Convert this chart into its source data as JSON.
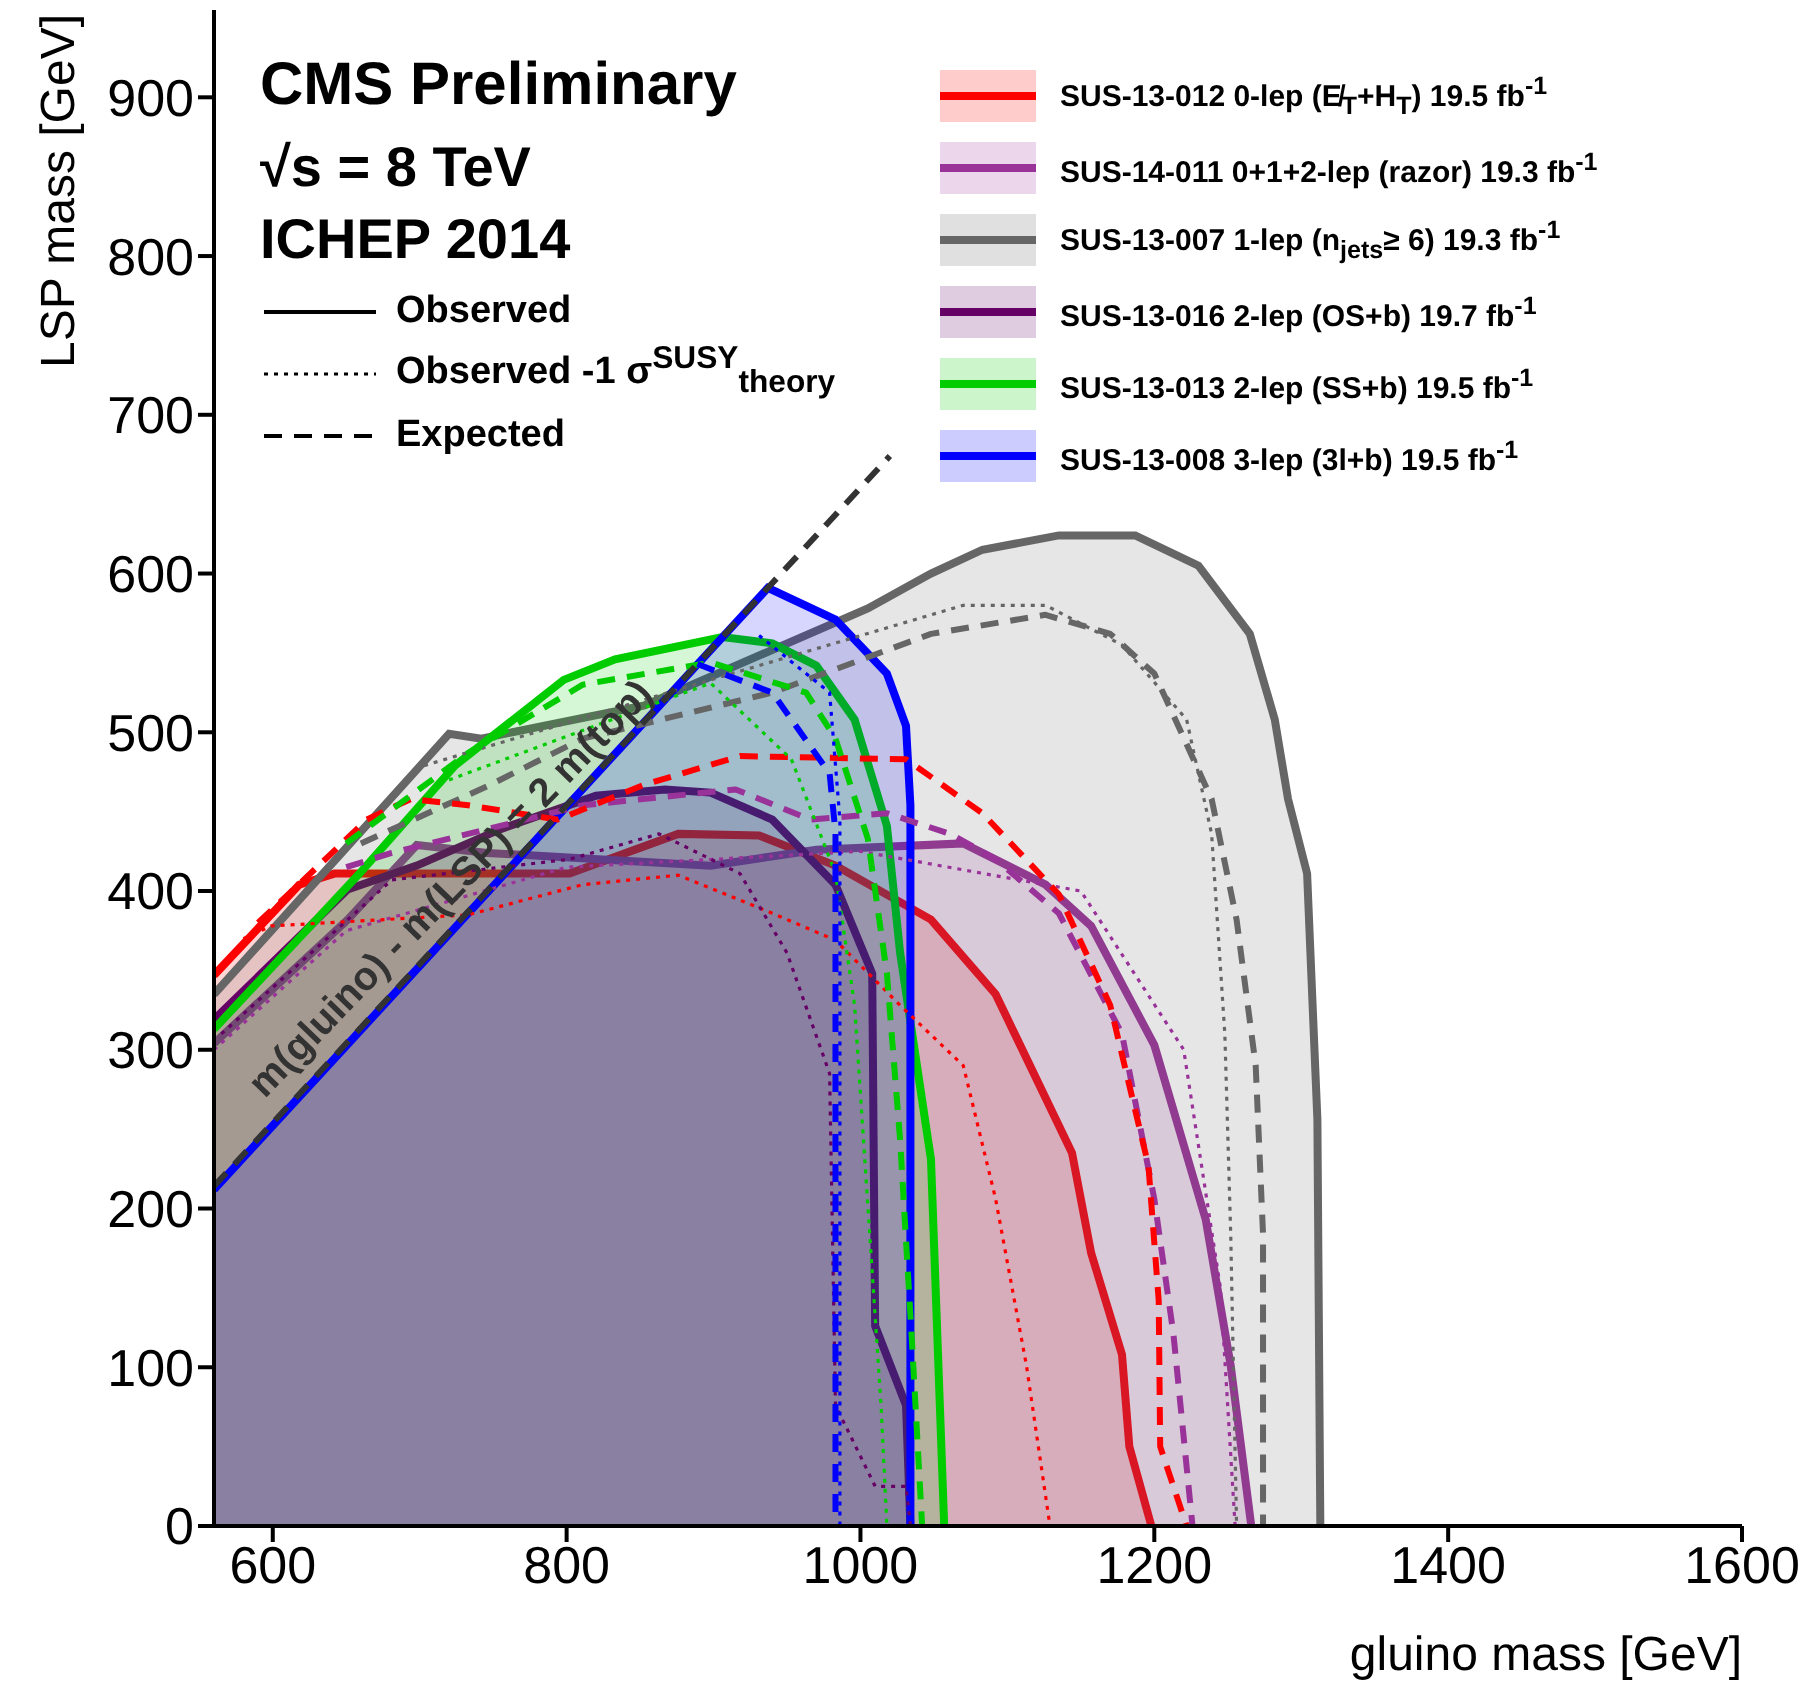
{
  "chart_data": {
    "type": "line",
    "title": "CMS Preliminary",
    "subtitle": "√s = 8 TeV",
    "xlabel": "gluino mass [GeV]",
    "ylabel": "LSP mass [GeV]",
    "xlim": [
      560,
      1600
    ],
    "xticks": [
      600,
      800,
      1000,
      1200,
      1400,
      1600
    ],
    "ylim": [
      0,
      955
    ],
    "yticks": [
      0,
      100,
      200,
      300,
      400,
      500,
      600,
      700,
      800,
      900
    ],
    "legend": "top right",
    "annotations": [
      "ICHEP 2014",
      "Observed",
      "Observed -1 σ$^{SUSY}$$_{theory}$",
      "Expected",
      {
        "text": "m(gluino) - m(LSP) = 2 m(top)",
        "x": 735,
        "y": 389
      }
    ],
    "series": [
      {
        "name": "SUS-13-012 0-lep (E̸$_{T}$+H$_{T}$) 19.5 fb$^{-1}$",
        "type": "area",
        "line_style": "solid",
        "color": "#ff0000",
        "x": [
          560,
          618,
          642,
          700,
          802,
          876,
          931,
          983,
          1048,
          1092,
          1144,
          1157,
          1178,
          1183,
          1198
        ],
        "values": [
          347,
          404,
          411,
          411,
          411,
          436,
          435,
          416,
          382,
          335,
          235,
          172,
          108,
          50,
          0
        ]
      },
      {
        "name": "SUS-14-011 0+1+2-lep (razor) 19.3 fb$^{-1}$",
        "type": "area",
        "line_style": "solid",
        "color": "#993399",
        "x": [
          560,
          651,
          698,
          746,
          898,
          970,
          1070,
          1126,
          1157,
          1200,
          1235,
          1252,
          1266
        ],
        "values": [
          304,
          382,
          429,
          424,
          416,
          426,
          430,
          404,
          378,
          303,
          193,
          101,
          0
        ]
      },
      {
        "name": "SUS-13-007 1-lep (n$_{jets}$≥ 6) 19.3 fb$^{-1}$",
        "type": "area",
        "line_style": "solid",
        "color": "#666666",
        "x": [
          560,
          720,
          742,
          853,
          1005,
          1048,
          1083,
          1135,
          1187,
          1230,
          1265,
          1282,
          1291,
          1304,
          1311,
          1313
        ],
        "values": [
          335,
          499,
          496,
          517,
          578,
          600,
          615,
          624,
          624,
          605,
          562,
          508,
          458,
          411,
          256,
          0
        ]
      },
      {
        "name": "SUS-13-016 2-lep (OS+b) 19.7 fb$^{-1}$",
        "type": "area",
        "line_style": "solid",
        "color": "#660066",
        "x": [
          560,
          651,
          698,
          755,
          820,
          867,
          898,
          940,
          983,
          1008,
          1010,
          1031,
          1034
        ],
        "values": [
          319,
          401,
          416,
          439,
          460,
          464,
          462,
          445,
          404,
          348,
          126,
          76,
          0
        ]
      },
      {
        "name": "SUS-13-013 2-lep (SS+b) 19.5 fb$^{-1}$",
        "type": "area",
        "line_style": "solid",
        "color": "#00cc00",
        "x": [
          560,
          659,
          724,
          798,
          833,
          906,
          940,
          970,
          996,
          1018,
          1027,
          1048,
          1057
        ],
        "values": [
          313,
          411,
          479,
          533,
          546,
          560,
          556,
          542,
          508,
          441,
          361,
          231,
          0
        ]
      },
      {
        "name": "SUS-13-008 3-lep (3l+b) 19.5 fb$^{-1}$",
        "type": "area",
        "line_style": "solid",
        "color": "#0000ff",
        "x": [
          560,
          937,
          983,
          1018,
          1031,
          1034,
          1034
        ],
        "values": [
          212,
          591,
          571,
          537,
          504,
          454,
          0
        ]
      },
      {
        "line_style": "dashed",
        "color": "#666666",
        "x": [
          660,
          746,
          811,
          940,
          1048,
          1126,
          1170,
          1200,
          1239,
          1256,
          1269,
          1274,
          1274
        ],
        "values": [
          430,
          466,
          496,
          525,
          562,
          574,
          562,
          537,
          458,
          382,
          290,
          184,
          0
        ]
      },
      {
        "line_style": "dotted",
        "color": "#666666",
        "x": [
          703,
          898,
          1070,
          1126,
          1178,
          1222,
          1239,
          1248,
          1252,
          1256
        ],
        "values": [
          479,
          533,
          580,
          580,
          555,
          508,
          436,
          310,
          184,
          0
        ]
      },
      {
        "line_style": "dashed",
        "color": "#993399",
        "x": [
          650,
          681,
          811,
          915,
          966,
          1018,
          1061,
          1092,
          1135,
          1178,
          1200,
          1213,
          1226
        ],
        "values": [
          415,
          424,
          454,
          464,
          445,
          449,
          436,
          420,
          386,
          310,
          206,
          121,
          0
        ]
      },
      {
        "line_style": "dotted",
        "color": "#993399",
        "x": [
          560,
          650,
          800,
          1000,
          1150,
          1220,
          1245,
          1255
        ],
        "values": [
          300,
          375,
          415,
          425,
          400,
          300,
          150,
          0
        ]
      },
      {
        "line_style": "dashed",
        "color": "#ff0000",
        "x": [
          590,
          629,
          664,
          694,
          733,
          794,
          853,
          918,
          1031,
          1083,
          1135,
          1170,
          1196,
          1203,
          1204,
          1222
        ],
        "values": [
          380,
          414,
          445,
          458,
          454,
          445,
          467,
          485,
          483,
          449,
          398,
          328,
          227,
          142,
          50,
          0
        ]
      },
      {
        "line_style": "dotted",
        "color": "#ff0000",
        "x": [
          580,
          599,
          733,
          811,
          876,
          940,
          983,
          1027,
          1070,
          1092,
          1113,
          1129
        ],
        "values": [
          370,
          378,
          385,
          404,
          410,
          386,
          369,
          328,
          290,
          206,
          101,
          0
        ]
      },
      {
        "line_style": "dotted",
        "color": "#660066",
        "x": [
          565,
          681,
          802,
          863,
          918,
          950,
          979,
          983,
          1010,
          1031,
          1034
        ],
        "values": [
          310,
          407,
          420,
          436,
          411,
          361,
          285,
          76,
          25,
          25,
          0
        ]
      },
      {
        "line_style": "dashed",
        "color": "#00cc00",
        "x": [
          650,
          733,
          811,
          898,
          963,
          983,
          1005,
          1018,
          1027,
          1035,
          1042
        ],
        "values": [
          430,
          487,
          530,
          544,
          525,
          496,
          433,
          348,
          243,
          117,
          0
        ]
      },
      {
        "line_style": "dotted",
        "color": "#00cc00",
        "x": [
          720,
          898,
          953,
          983,
          996,
          1005,
          1014,
          1018
        ],
        "values": [
          470,
          531,
          483,
          411,
          328,
          202,
          76,
          0
        ]
      },
      {
        "line_style": "dashed",
        "color": "#0000ff",
        "x": [
          889,
          940,
          979,
          983,
          983
        ],
        "values": [
          543,
          525,
          474,
          437,
          0
        ]
      },
      {
        "line_style": "dotted",
        "color": "#0000ff",
        "x": [
          931,
          979,
          986,
          986
        ],
        "values": [
          561,
          525,
          445,
          0
        ]
      },
      {
        "line_style": "dashed",
        "color": "#333333",
        "x": [
          560,
          1020
        ],
        "values": [
          214,
          674
        ]
      }
    ]
  }
}
